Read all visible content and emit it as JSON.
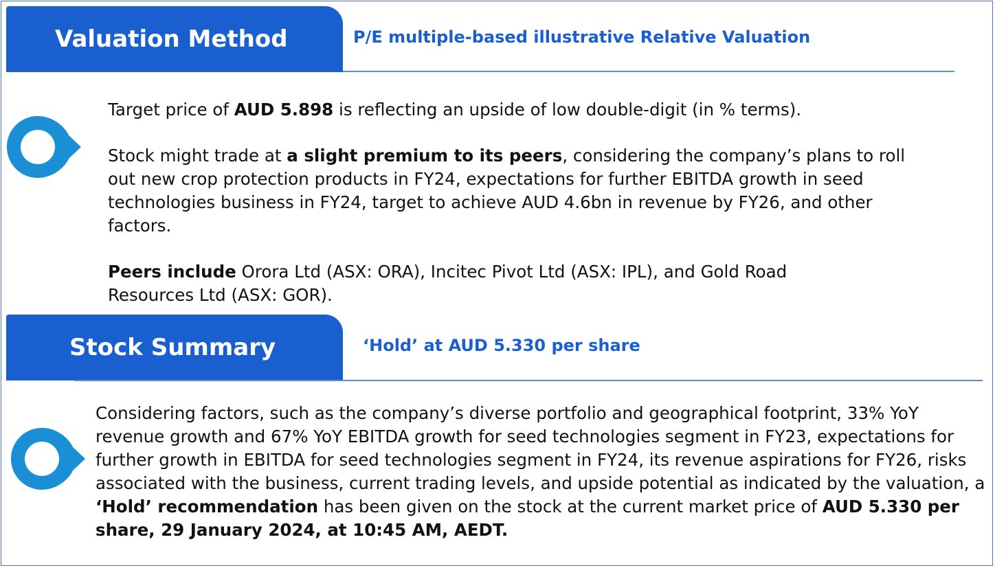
{
  "valuation": {
    "tab_label": "Valuation Method",
    "subtitle": "P/E multiple-based illustrative Relative Valuation",
    "p1_a": "Target price of ",
    "p1_bold": "AUD 5.898",
    "p1_b": " is reflecting an upside of low double-digit (in % terms).",
    "p2_a": "Stock might trade at ",
    "p2_bold": "a slight premium to its peers",
    "p2_b": ", considering the company’s plans to roll out new crop protection products in FY24, expectations for further EBITDA growth in seed technologies business in FY24, target to achieve AUD 4.6bn in revenue by FY26, and other factors.",
    "p3_bold": "Peers include",
    "p3_b": " Orora Ltd (ASX: ORA), Incitec Pivot Ltd (ASX: IPL), and Gold Road Resources Ltd (ASX: GOR)."
  },
  "summary": {
    "tab_label": "Stock Summary",
    "subtitle": "‘Hold’ at AUD 5.330 per share",
    "p_a": "Considering factors, such as the company’s diverse portfolio and geographical footprint, 33% YoY revenue growth and 67% YoY EBITDA growth for seed technologies segment in FY23, expectations for further growth in EBITDA for  seed technologies segment in FY24, its revenue aspirations for FY26, risks associated with the business, current trading levels, and upside potential as indicated by the valuation, a ",
    "p_bold1": "‘Hold’ recommendation",
    "p_b": " has been given on the stock at the current market price of ",
    "p_bold2": "AUD 5.330 per share, 29 January 2024, at 10:45 AM, AEDT."
  },
  "colors": {
    "accent": "#1a5fd0",
    "marker": "#1b8fd6",
    "rule": "#5d89d6"
  }
}
